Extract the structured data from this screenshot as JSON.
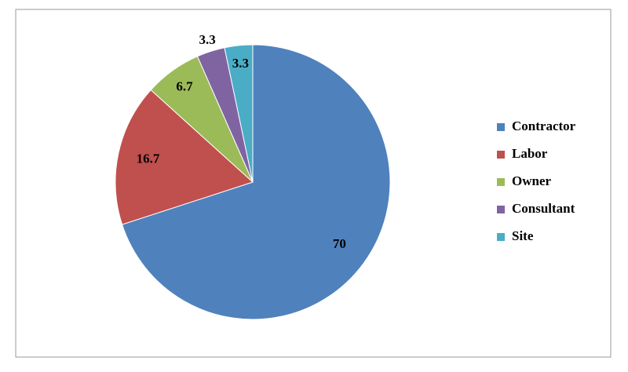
{
  "chart_data": {
    "type": "pie",
    "categories": [
      "Contractor",
      "Labor",
      "Owner",
      "Consultant",
      "Site"
    ],
    "values": [
      70,
      16.7,
      6.7,
      3.3,
      3.3
    ],
    "colors": [
      "#4f81bd",
      "#c0504d",
      "#9bbb59",
      "#8064a2",
      "#4bacc6"
    ],
    "legend": "right"
  }
}
